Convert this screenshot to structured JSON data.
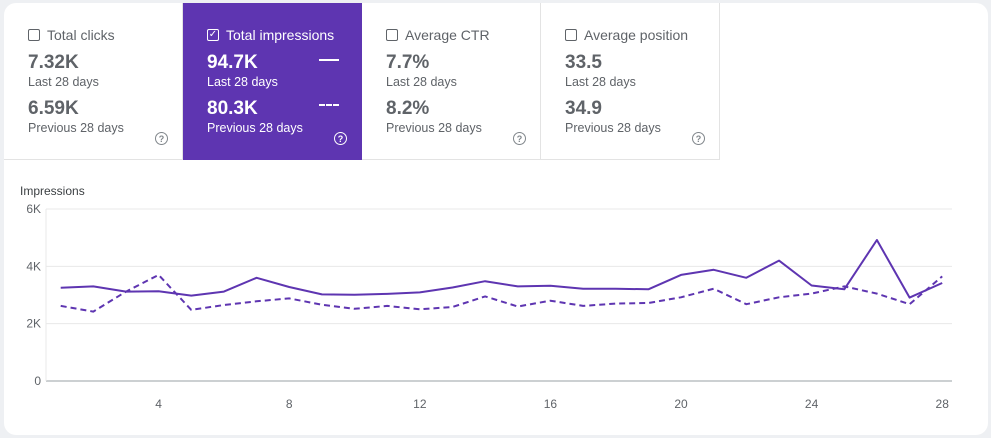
{
  "metrics": [
    {
      "label": "Total clicks",
      "checked": false,
      "current_value": "7.32K",
      "current_period": "Last 28 days",
      "previous_value": "6.59K",
      "previous_period": "Previous 28 days",
      "help_glyph": "?"
    },
    {
      "label": "Total impressions",
      "checked": true,
      "check_glyph": "✓",
      "current_value": "94.7K",
      "current_period": "Last 28 days",
      "previous_value": "80.3K",
      "previous_period": "Previous 28 days",
      "help_glyph": "?"
    },
    {
      "label": "Average CTR",
      "checked": false,
      "current_value": "7.7%",
      "current_period": "Last 28 days",
      "previous_value": "8.2%",
      "previous_period": "Previous 28 days",
      "help_glyph": "?"
    },
    {
      "label": "Average position",
      "checked": false,
      "current_value": "33.5",
      "current_period": "Last 28 days",
      "previous_value": "34.9",
      "previous_period": "Previous 28 days",
      "help_glyph": "?"
    }
  ],
  "colors": {
    "accent": "#5e35b1",
    "series": "#5e35b1",
    "grid": "#e8e8e8",
    "axis": "#5f6368"
  },
  "chart_data": {
    "type": "line",
    "ylabel": "Impressions",
    "ylim": [
      0,
      6000
    ],
    "y_ticks": [
      {
        "value": 0,
        "label": "0"
      },
      {
        "value": 2000,
        "label": "2K"
      },
      {
        "value": 4000,
        "label": "4K"
      },
      {
        "value": 6000,
        "label": "6K"
      }
    ],
    "x_ticks": [
      4,
      8,
      12,
      16,
      20,
      24,
      28
    ],
    "xlim": [
      0.55,
      28.3
    ],
    "grid": true,
    "x": [
      1,
      2,
      3,
      4,
      5,
      6,
      7,
      8,
      9,
      10,
      11,
      12,
      13,
      14,
      15,
      16,
      17,
      18,
      19,
      20,
      21,
      22,
      23,
      24,
      25,
      26,
      27,
      28
    ],
    "series": [
      {
        "style": "solid",
        "values": [
          3250,
          3300,
          3120,
          3130,
          2980,
          3120,
          3600,
          3280,
          3020,
          3010,
          3040,
          3090,
          3260,
          3480,
          3300,
          3320,
          3220,
          3220,
          3200,
          3700,
          3880,
          3600,
          4200,
          3330,
          3200,
          4920,
          2910,
          3420
        ]
      },
      {
        "style": "dashed",
        "values": [
          2620,
          2420,
          3120,
          3700,
          2480,
          2650,
          2780,
          2880,
          2660,
          2520,
          2620,
          2500,
          2580,
          2950,
          2600,
          2800,
          2620,
          2700,
          2720,
          2920,
          3220,
          2680,
          2920,
          3050,
          3300,
          3050,
          2680,
          3650
        ]
      }
    ]
  }
}
